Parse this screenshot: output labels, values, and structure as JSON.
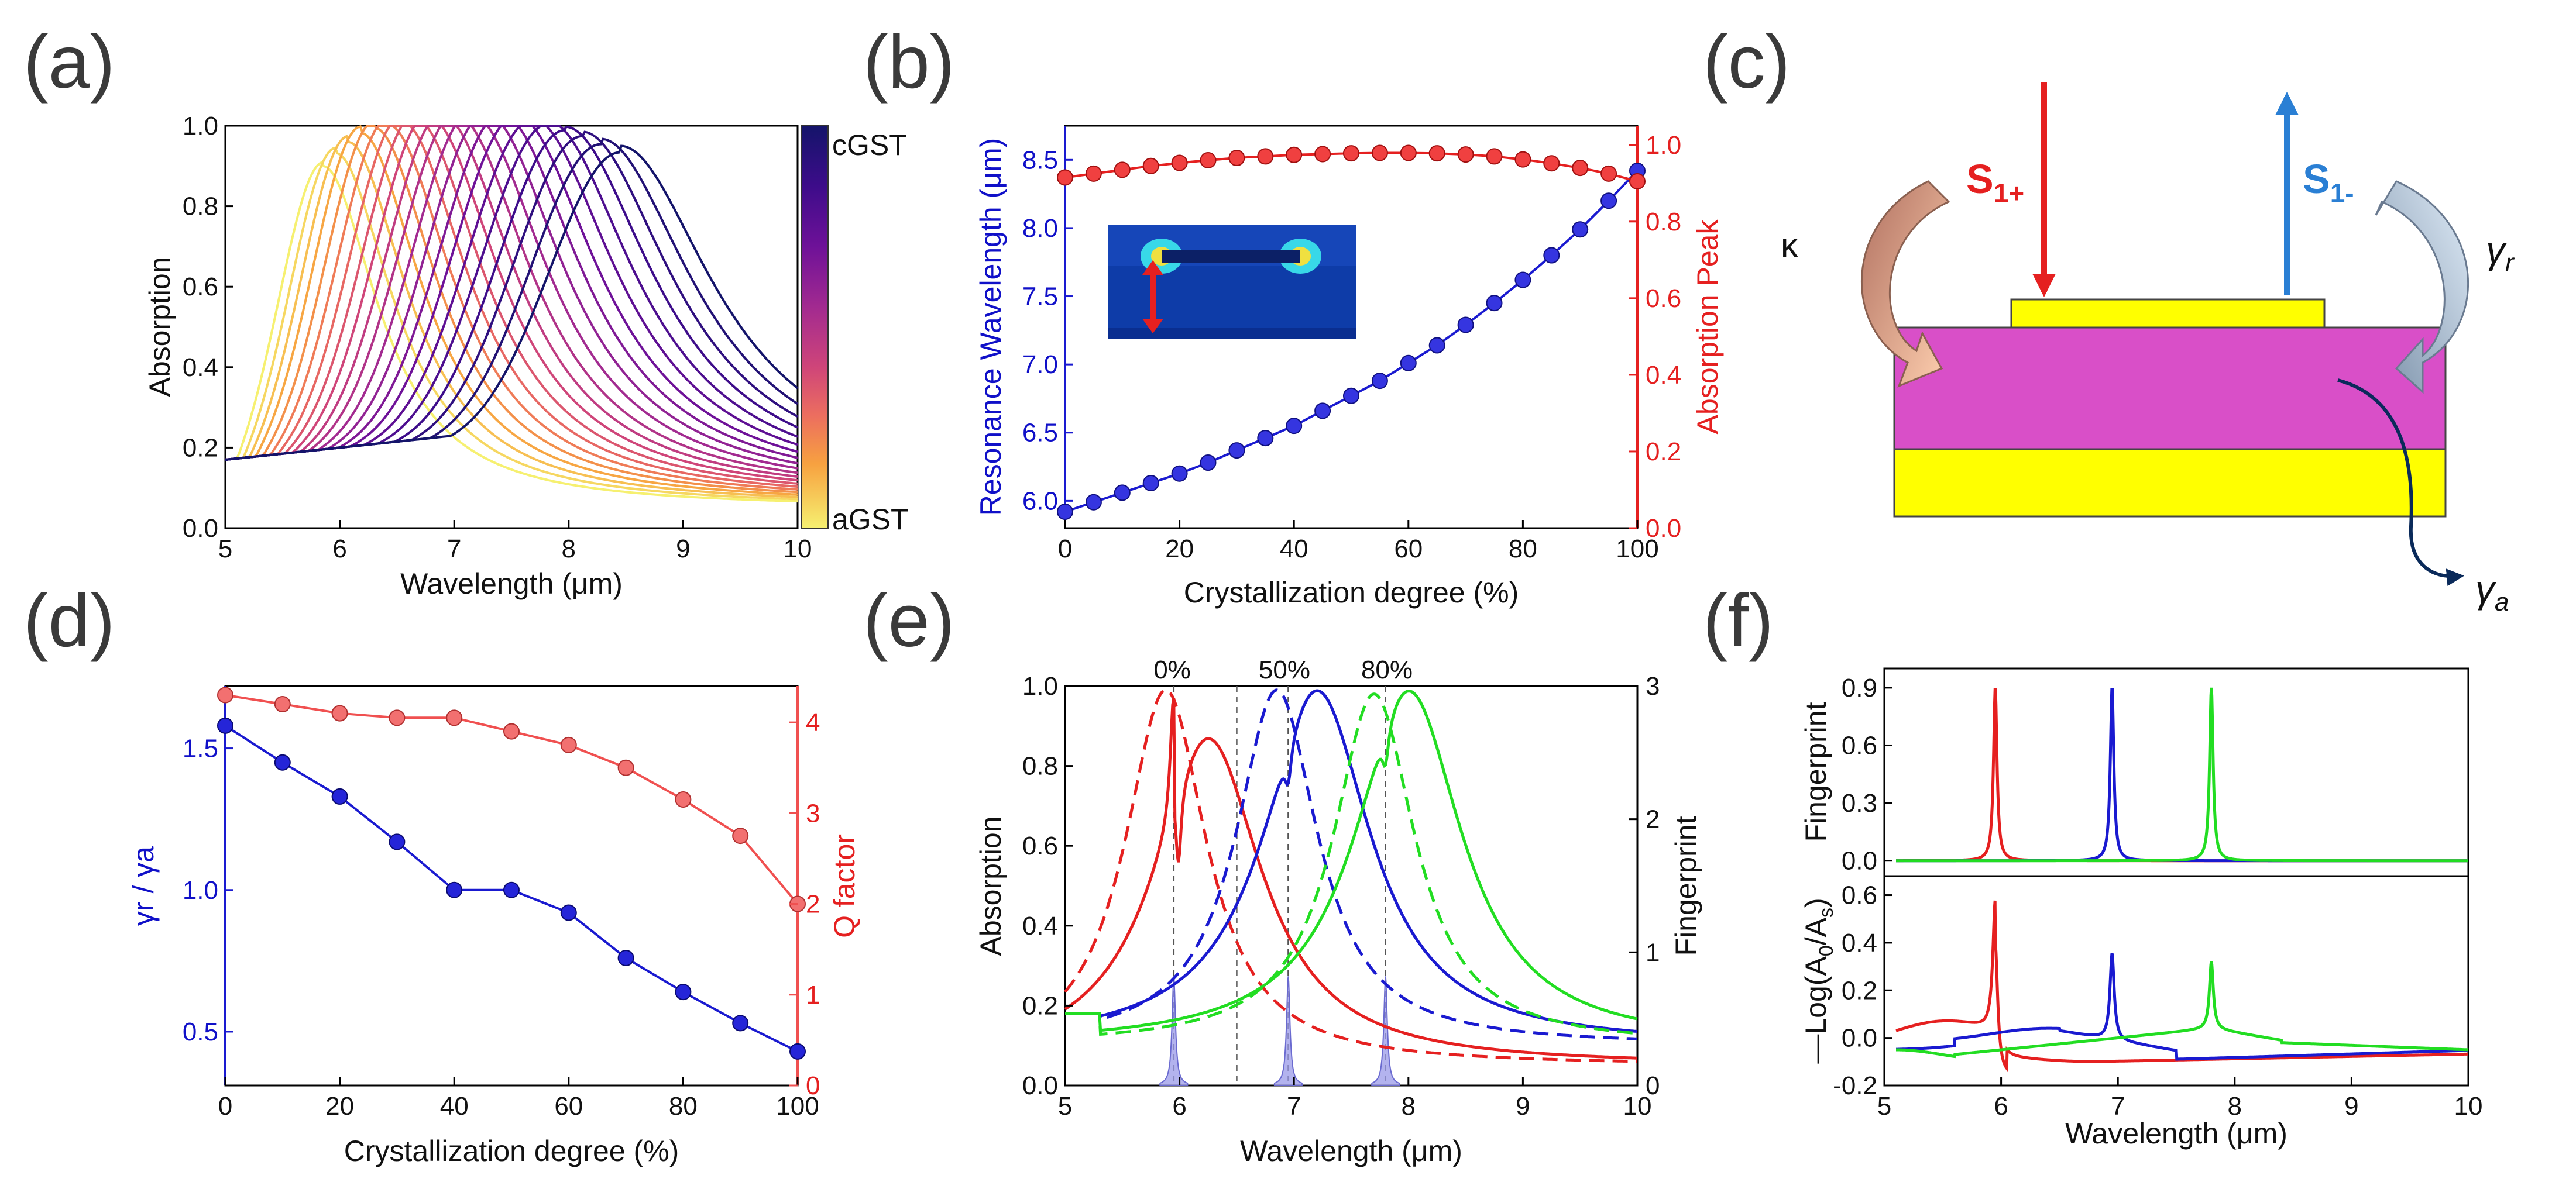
{
  "chart_data": [
    {
      "panel": "(a)",
      "type": "line",
      "xlabel": "Wavelength (μm)",
      "ylabel": "Absorption",
      "xlim": [
        5,
        10
      ],
      "ylim": [
        0,
        1
      ],
      "xticks": [
        "5",
        "6",
        "7",
        "8",
        "9",
        "10"
      ],
      "yticks": [
        "0.0",
        "0.2",
        "0.4",
        "0.6",
        "0.8",
        "1.0"
      ],
      "colorbar": {
        "top_label": "cGST",
        "bottom_label": "aGST",
        "colors": [
          "#1a1a6e",
          "#4b0c8a",
          "#7a1096",
          "#a52a8e",
          "#c93f7c",
          "#e35c69",
          "#f38054",
          "#f9a73e",
          "#fbcc2e",
          "#f5ef5a"
        ]
      },
      "series_description": "21 Lorentzian absorption spectra from aGST (yellow) to cGST (dark blue)",
      "peaks_um": [
        5.85,
        5.96,
        6.07,
        6.18,
        6.3,
        6.42,
        6.54,
        6.66,
        6.78,
        6.9,
        7.02,
        7.15,
        7.28,
        7.41,
        7.54,
        7.68,
        7.82,
        7.97,
        8.12,
        8.28,
        8.45
      ],
      "peak_heights": [
        0.9,
        0.93,
        0.955,
        0.975,
        0.985,
        0.99,
        0.995,
        0.998,
        1.0,
        1.0,
        1.0,
        1.0,
        0.998,
        0.995,
        0.99,
        0.98,
        0.97,
        0.955,
        0.94,
        0.92,
        0.9
      ]
    },
    {
      "panel": "(b)",
      "type": "scatter",
      "xlabel": "Crystallization degree (%)",
      "ylabel_left": "Resonance Wavelength (μm)",
      "ylabel_right": "Absorption Peak",
      "xlim": [
        0,
        100
      ],
      "ylim_left": [
        5.8,
        8.75
      ],
      "ylim_right": [
        0,
        1.05
      ],
      "xticks": [
        "0",
        "20",
        "40",
        "60",
        "80",
        "100"
      ],
      "yticks_left": [
        "6.0",
        "6.5",
        "7.0",
        "7.5",
        "8.0",
        "8.5"
      ],
      "yticks_right": [
        "0.0",
        "0.2",
        "0.4",
        "0.6",
        "0.8",
        "1.0"
      ],
      "x": [
        0,
        5,
        10,
        15,
        20,
        25,
        30,
        35,
        40,
        45,
        50,
        55,
        60,
        65,
        70,
        75,
        80,
        85,
        90,
        95,
        100
      ],
      "series": [
        {
          "name": "Resonance Wavelength",
          "axis": "left",
          "color": "#1a1ad0",
          "values": [
            5.92,
            5.99,
            6.06,
            6.13,
            6.2,
            6.28,
            6.37,
            6.46,
            6.55,
            6.66,
            6.77,
            6.88,
            7.01,
            7.14,
            7.29,
            7.45,
            7.62,
            7.8,
            7.99,
            8.2,
            8.42
          ]
        },
        {
          "name": "Absorption Peak",
          "axis": "right",
          "color": "#e52020",
          "values": [
            0.915,
            0.925,
            0.935,
            0.945,
            0.953,
            0.96,
            0.966,
            0.97,
            0.974,
            0.976,
            0.978,
            0.979,
            0.979,
            0.978,
            0.975,
            0.97,
            0.962,
            0.952,
            0.94,
            0.925,
            0.905
          ]
        }
      ]
    },
    {
      "panel": "(c)",
      "type": "diagram",
      "labels": {
        "kappa": "κ",
        "s_in": "S1+",
        "s_in_main": "S",
        "s_in_sub": "1+",
        "s_out": "S1-",
        "s_out_main": "S",
        "s_out_sub": "1-",
        "gamma_r": "γr",
        "gamma_a": "γa",
        "gamma": "γ",
        "r": "r",
        "a": "a"
      },
      "colors": {
        "metal": "#ffff00",
        "gst": "#d94fc8",
        "in_arrow": "#e52020",
        "out_arrow": "#2a7fd4"
      }
    },
    {
      "panel": "(d)",
      "type": "line",
      "xlabel": "Crystallization degree (%)",
      "ylabel_left": "γr / γa",
      "ylabel_right": "Q factor",
      "xlim": [
        0,
        100
      ],
      "ylim_left": [
        0.31,
        1.72
      ],
      "ylim_right": [
        0,
        4.4
      ],
      "xticks": [
        "0",
        "20",
        "40",
        "60",
        "80",
        "100"
      ],
      "yticks_left": [
        "0.5",
        "1.0",
        "1.5"
      ],
      "yticks_right": [
        "0",
        "1",
        "2",
        "3",
        "4"
      ],
      "x": [
        0,
        10,
        20,
        30,
        40,
        50,
        60,
        70,
        80,
        90,
        100
      ],
      "series": [
        {
          "name": "γr / γa",
          "axis": "left",
          "color": "#1a1ad0",
          "values": [
            1.58,
            1.45,
            1.33,
            1.17,
            1.0,
            1.0,
            0.92,
            0.76,
            0.64,
            0.53,
            0.43
          ]
        },
        {
          "name": "Q factor",
          "axis": "right",
          "color": "#f05050",
          "values": [
            4.3,
            4.2,
            4.1,
            4.05,
            4.05,
            3.9,
            3.75,
            3.5,
            3.15,
            2.75,
            2.0
          ]
        }
      ]
    },
    {
      "panel": "(e)",
      "type": "line",
      "xlabel": "Wavelength (μm)",
      "ylabel_left": "Absorption",
      "ylabel_right": "Fingerprint",
      "xlim": [
        5,
        10
      ],
      "ylim_left": [
        0,
        1
      ],
      "ylim_right": [
        0,
        3
      ],
      "xticks": [
        "5",
        "6",
        "7",
        "8",
        "9",
        "10"
      ],
      "yticks_left": [
        "0.0",
        "0.2",
        "0.4",
        "0.6",
        "0.8",
        "1.0"
      ],
      "yticks_right": [
        "0",
        "1",
        "2",
        "3"
      ],
      "annotations": [
        "0%",
        "50%",
        "80%"
      ],
      "vlines_um": [
        5.95,
        6.5,
        6.95,
        7.8
      ],
      "fingerprint_peaks_um": [
        5.95,
        6.95,
        7.8
      ],
      "series": [
        {
          "name": "0% dashed",
          "color": "#e52020",
          "dash": true,
          "peak_um": 5.88,
          "peak": 0.99
        },
        {
          "name": "0% solid",
          "color": "#e52020",
          "dash": false,
          "peak_um": 6.25,
          "peak": 0.87,
          "dip_um": 5.95
        },
        {
          "name": "50% dashed",
          "color": "#1a1ad0",
          "dash": true,
          "peak_um": 6.85,
          "peak": 0.99
        },
        {
          "name": "50% solid",
          "color": "#1a1ad0",
          "dash": false,
          "peak_um": 7.2,
          "peak": 0.99,
          "dip_um": 6.95
        },
        {
          "name": "80% dashed",
          "color": "#22dd22",
          "dash": true,
          "peak_um": 7.7,
          "peak": 0.98
        },
        {
          "name": "80% solid",
          "color": "#22dd22",
          "dash": false,
          "peak_um": 8.0,
          "peak": 0.99,
          "dip_um": 7.8
        }
      ]
    },
    {
      "panel": "(f)",
      "type": "line",
      "xlabel": "Wavelength (μm)",
      "top": {
        "ylabel": "Fingerprint",
        "ylim": [
          -0.08,
          1.0
        ],
        "yticks": [
          "0.0",
          "0.3",
          "0.6",
          "0.9"
        ],
        "peaks": [
          {
            "color": "#e52020",
            "x": 5.95,
            "y": 0.9
          },
          {
            "color": "#1a1ad0",
            "x": 6.95,
            "y": 0.9
          },
          {
            "color": "#22dd22",
            "x": 7.8,
            "y": 0.9
          }
        ]
      },
      "bottom": {
        "ylabel": "—Log(A0/As)",
        "ylabel_parts": [
          "—Log(A",
          "0",
          "/A",
          "s",
          ")"
        ],
        "ylim": [
          -0.2,
          0.68
        ],
        "yticks": [
          "-0.2",
          "0.0",
          "0.2",
          "0.4",
          "0.6"
        ],
        "peaks": [
          {
            "color": "#e52020",
            "x": 5.95,
            "y": 0.55
          },
          {
            "color": "#1a1ad0",
            "x": 6.95,
            "y": 0.36
          },
          {
            "color": "#22dd22",
            "x": 7.8,
            "y": 0.28
          }
        ]
      },
      "xlim": [
        5,
        10
      ],
      "xticks": [
        "5",
        "6",
        "7",
        "8",
        "9",
        "10"
      ]
    }
  ],
  "panel_labels": [
    "(a)",
    "(b)",
    "(c)",
    "(d)",
    "(e)",
    "(f)"
  ]
}
